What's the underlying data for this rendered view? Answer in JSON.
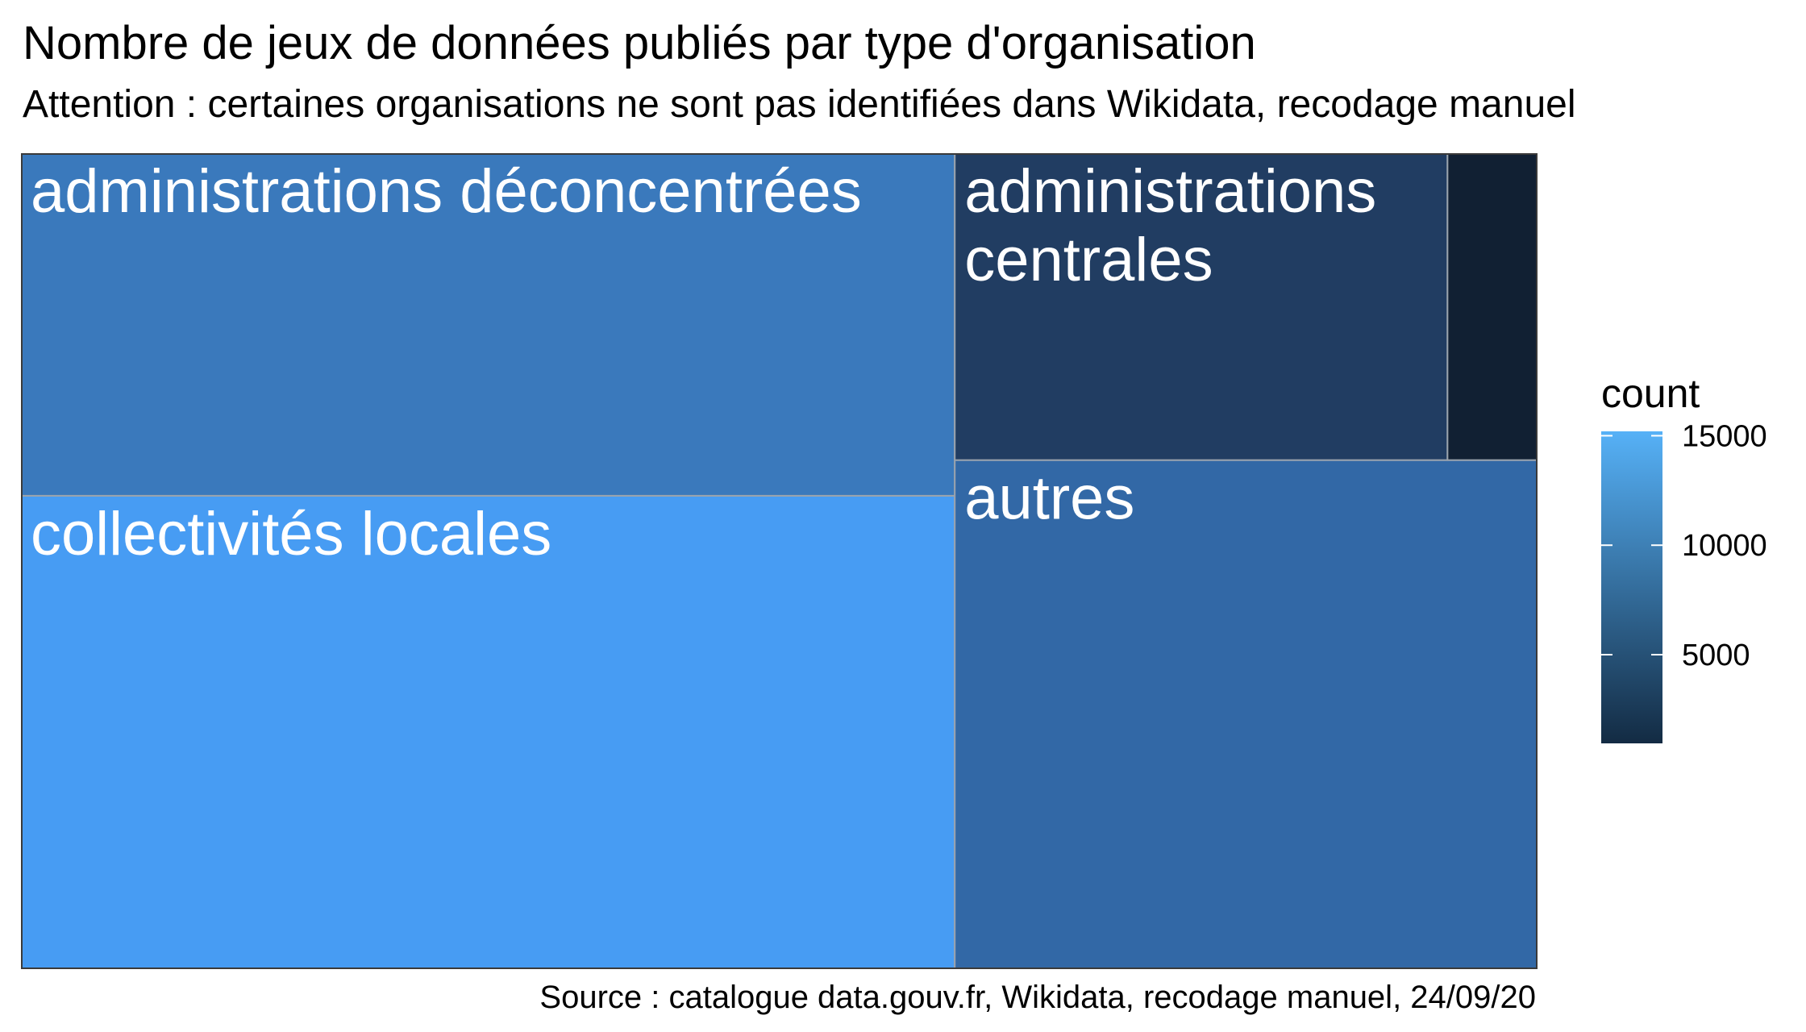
{
  "chart_data": {
    "type": "treemap",
    "title": "Nombre de jeux de données publiés par type d'organisation",
    "subtitle": "Attention : certaines organisations ne sont pas identifiées dans Wikidata, recodage manuel",
    "caption": "Source : catalogue data.gouv.fr, Wikidata, recodage manuel, 24/09/20",
    "categories": [
      "collectivités locales",
      "administrations déconcentrées",
      "autres",
      "administrations centrales",
      ""
    ],
    "values": [
      15200,
      11000,
      10200,
      5200,
      950
    ],
    "legend": {
      "title": "count",
      "position": "right",
      "ticks": [
        5000,
        10000,
        15000
      ],
      "range": [
        950,
        15200
      ],
      "color_low": "#132B43",
      "color_high": "#56B1F7"
    },
    "colors": {
      "collectivités locales": "#479CF3",
      "administrations déconcentrées": "#3A79BC",
      "autres": "#3268A6",
      "administrations centrales": "#213D62",
      "": "#112033"
    },
    "border_color": "#9aa3ad"
  }
}
